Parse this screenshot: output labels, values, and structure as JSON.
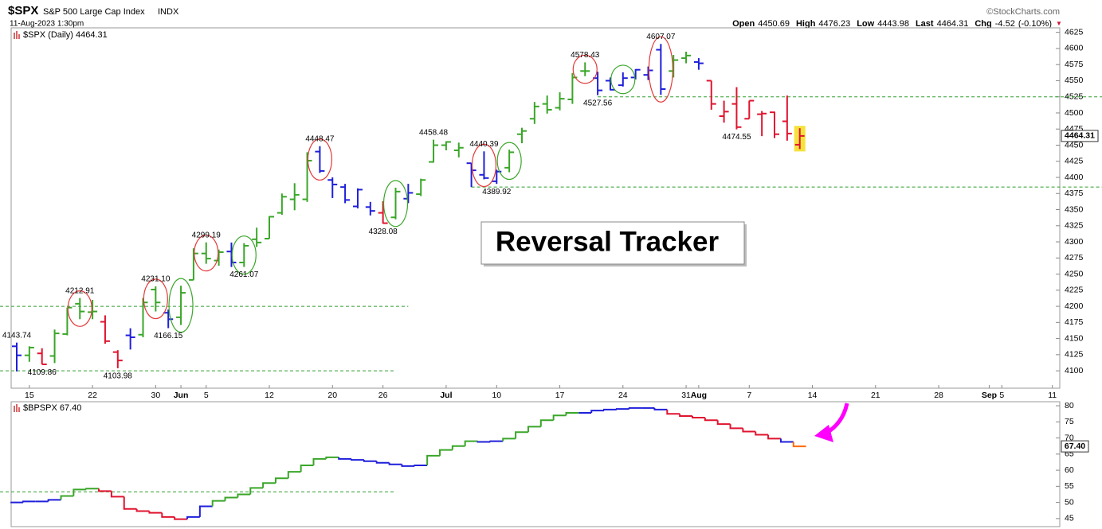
{
  "header": {
    "symbol": "$SPX",
    "name": "S&P 500 Large Cap Index",
    "exchange": "INDX",
    "timestamp": "11-Aug-2023 1:30pm",
    "source": "©StockCharts.com",
    "quote": [
      {
        "label": "Open",
        "value": 4450.69
      },
      {
        "label": "High",
        "value": 4476.23
      },
      {
        "label": "Low",
        "value": 4443.98
      },
      {
        "label": "Last",
        "value": 4464.31
      },
      {
        "label": "Chg",
        "value": -4.52,
        "pct_label": "(-0.10%)"
      }
    ]
  },
  "chart_data": [
    {
      "type": "ohlc",
      "legend": "$SPX (Daily)",
      "last": 4464.31,
      "text_box": "Reversal Tracker",
      "categories": [
        "2023-05-12",
        "2023-05-15",
        "2023-05-16",
        "2023-05-17",
        "2023-05-18",
        "2023-05-19",
        "2023-05-22",
        "2023-05-23",
        "2023-05-24",
        "2023-05-25",
        "2023-05-26",
        "2023-05-30",
        "2023-05-31",
        "2023-06-01",
        "2023-06-02",
        "2023-06-05",
        "2023-06-06",
        "2023-06-07",
        "2023-06-08",
        "2023-06-09",
        "2023-06-12",
        "2023-06-13",
        "2023-06-14",
        "2023-06-15",
        "2023-06-16",
        "2023-06-20",
        "2023-06-21",
        "2023-06-22",
        "2023-06-23",
        "2023-06-26",
        "2023-06-27",
        "2023-06-28",
        "2023-06-29",
        "2023-06-30",
        "2023-07-03",
        "2023-07-05",
        "2023-07-06",
        "2023-07-07",
        "2023-07-10",
        "2023-07-11",
        "2023-07-12",
        "2023-07-13",
        "2023-07-14",
        "2023-07-17",
        "2023-07-18",
        "2023-07-19",
        "2023-07-20",
        "2023-07-21",
        "2023-07-24",
        "2023-07-25",
        "2023-07-26",
        "2023-07-27",
        "2023-07-28",
        "2023-07-31",
        "2023-08-01",
        "2023-08-02",
        "2023-08-03",
        "2023-08-04",
        "2023-08-07",
        "2023-08-08",
        "2023-08-09",
        "2023-08-10",
        "2023-08-11",
        "2023-08-14",
        "2023-08-15",
        "2023-08-16",
        "2023-08-17",
        "2023-08-18",
        "2023-08-21",
        "2023-08-22",
        "2023-08-23",
        "2023-08-24",
        "2023-08-25",
        "2023-08-28",
        "2023-08-29",
        "2023-08-30",
        "2023-08-31",
        "2023-09-01",
        "2023-09-05",
        "2023-09-06",
        "2023-09-07",
        "2023-09-08",
        "2023-09-11"
      ],
      "open": [
        4138,
        4124,
        4127,
        4123,
        4157,
        4204,
        4191,
        4176,
        4129,
        4155,
        4156,
        4226,
        4190,
        4183,
        4241,
        4282,
        4271,
        4285,
        4268,
        4304,
        4305,
        4345,
        4366,
        4366,
        4440,
        4396,
        4385,
        4355,
        4354,
        4345,
        4338,
        4367,
        4374,
        4424,
        4450,
        4442,
        4422,
        4404,
        4394,
        4415,
        4467,
        4491,
        4514,
        4508,
        4521,
        4565,
        4554,
        4550,
        4543,
        4555,
        4559,
        4598,
        4565,
        4585,
        4579,
        4550,
        4495,
        4514,
        4491,
        4498,
        4501,
        4487,
        4450.69,
        null,
        null,
        null,
        null,
        null,
        null,
        null,
        null,
        null,
        null,
        null,
        null,
        null,
        null,
        null,
        null,
        null,
        null,
        null,
        null
      ],
      "high": [
        4143.74,
        4138,
        4135,
        4164,
        4198,
        4212.91,
        4210,
        4186,
        4132,
        4166,
        4213,
        4231.1,
        4195,
        4232,
        4290,
        4299.19,
        4288,
        4299,
        4298,
        4322,
        4340,
        4375,
        4391,
        4439,
        4448.47,
        4400,
        4390,
        4383,
        4362,
        4363,
        4384,
        4390,
        4398,
        4458.48,
        4456,
        4454,
        4422,
        4440.39,
        4412,
        4443,
        4477,
        4517,
        4527,
        4532,
        4562,
        4578.43,
        4564,
        4555,
        4563,
        4568,
        4572,
        4607.07,
        4590,
        4595,
        4585,
        4550,
        4519,
        4540,
        4519,
        4503,
        4502,
        4527,
        4476.23,
        null,
        null,
        null,
        null,
        null,
        null,
        null,
        null,
        null,
        null,
        null,
        null,
        null,
        null,
        null,
        null,
        null,
        null,
        null,
        null
      ],
      "low": [
        4099,
        4114,
        4109.86,
        4112,
        4155,
        4180,
        4180,
        4142,
        4103.98,
        4133,
        4152,
        4192,
        4166.15,
        4171,
        4241,
        4266,
        4263,
        4261,
        4261.07,
        4292,
        4305,
        4342,
        4349,
        4362,
        4407,
        4368,
        4360,
        4352,
        4341,
        4328.08,
        4335,
        4360,
        4371,
        4423,
        4442,
        4431,
        4385,
        4397,
        4389.92,
        4408,
        4453,
        4483,
        4499,
        4504,
        4514,
        4557,
        4527.56,
        4535,
        4541,
        4552,
        4551,
        4528,
        4555,
        4577,
        4567,
        4505,
        4485,
        4474.55,
        4491,
        4464,
        4461,
        4457,
        4443.98,
        null,
        null,
        null,
        null,
        null,
        null,
        null,
        null,
        null,
        null,
        null,
        null,
        null,
        null,
        null,
        null,
        null,
        null,
        null,
        null
      ],
      "close": [
        4124,
        4136,
        4110,
        4158,
        4198,
        4192,
        4192,
        4146,
        4116,
        4152,
        4206,
        4206,
        4180,
        4221,
        4282,
        4274,
        4284,
        4268,
        4294,
        4299,
        4339,
        4370,
        4373,
        4426,
        4410,
        4389,
        4365,
        4381,
        4348,
        4329,
        4378,
        4376,
        4396,
        4450,
        4455,
        4446,
        4411,
        4399,
        4409,
        4439,
        4472,
        4510,
        4505,
        4522,
        4555,
        4565,
        4535,
        4536,
        4554,
        4567,
        4566,
        4537,
        4582,
        4589,
        4577,
        4514,
        4502,
        4478,
        4519,
        4499,
        4467,
        4468,
        4464.31,
        null,
        null,
        null,
        null,
        null,
        null,
        null,
        null,
        null,
        null,
        null,
        null,
        null,
        null,
        null,
        null,
        null,
        null,
        null,
        null
      ],
      "colors": [
        "#1f1fdb",
        "#3aa629",
        "#e0142f",
        "#3aa629",
        "#3aa629",
        "#3aa629",
        "#3aa629",
        "#e0142f",
        "#e0142f",
        "#1f1fdb",
        "#3aa629",
        "#3aa629",
        "#1f1fdb",
        "#3aa629",
        "#3aa629",
        "#3aa629",
        "#3aa629",
        "#1f1fdb",
        "#3aa629",
        "#3aa629",
        "#3aa629",
        "#3aa629",
        "#3aa629",
        "#3aa629",
        "#1f1fdb",
        "#1f1fdb",
        "#1f1fdb",
        "#1f1fdb",
        "#1f1fdb",
        "#e0142f",
        "#3aa629",
        "#1f1fdb",
        "#3aa629",
        "#3aa629",
        "#3aa629",
        "#3aa629",
        "#1f1fdb",
        "#1f1fdb",
        "#1f1fdb",
        "#3aa629",
        "#3aa629",
        "#3aa629",
        "#3aa629",
        "#3aa629",
        "#3aa629",
        "#3aa629",
        "#1f1fdb",
        "#1f1fdb",
        "#1f1fdb",
        "#1f1fdb",
        "#1f1fdb",
        "#1f1fdb",
        "#3aa629",
        "#3aa629",
        "#1f1fdb",
        "#e0142f",
        "#e0142f",
        "#e0142f",
        "#e0142f",
        "#e0142f",
        "#e0142f",
        "#e0142f",
        "#e0142f",
        null,
        null,
        null,
        null,
        null,
        null,
        null,
        null,
        null,
        null,
        null,
        null,
        null,
        null,
        null,
        null,
        null,
        null,
        null,
        null
      ],
      "highlight_last": "#f5e23c",
      "ylim": [
        4073,
        4632
      ],
      "yticks": [
        4100,
        4125,
        4150,
        4175,
        4200,
        4225,
        4250,
        4275,
        4300,
        4325,
        4350,
        4375,
        4400,
        4425,
        4450,
        4475,
        4500,
        4525,
        4550,
        4575,
        4600,
        4625
      ],
      "xticks": [
        {
          "value": "2023-05-15",
          "label": "15"
        },
        {
          "value": "2023-05-22",
          "label": "22"
        },
        {
          "value": "2023-05-30",
          "label": "30"
        },
        {
          "value": "2023-06-01",
          "label": "Jun"
        },
        {
          "value": "2023-06-05",
          "label": "5"
        },
        {
          "value": "2023-06-12",
          "label": "12"
        },
        {
          "value": "2023-06-20",
          "label": "20"
        },
        {
          "value": "2023-06-26",
          "label": "26"
        },
        {
          "value": "2023-07-03",
          "label": "Jul"
        },
        {
          "value": "2023-07-10",
          "label": "10"
        },
        {
          "value": "2023-07-17",
          "label": "17"
        },
        {
          "value": "2023-07-24",
          "label": "24"
        },
        {
          "value": "2023-07-31",
          "label": "31"
        },
        {
          "value": "2023-08-01",
          "label": "Aug"
        },
        {
          "value": "2023-08-07",
          "label": "7"
        },
        {
          "value": "2023-08-14",
          "label": "14"
        },
        {
          "value": "2023-08-21",
          "label": "21"
        },
        {
          "value": "2023-08-28",
          "label": "28"
        },
        {
          "value": "2023-09-01",
          "label": "Sep"
        },
        {
          "value": "2023-09-05",
          "label": "5"
        },
        {
          "value": "2023-09-11",
          "label": "11"
        }
      ],
      "reference_color": "#2e9e2e",
      "reference_lines": [
        {
          "value": 4200,
          "to": "2023-06-28"
        },
        {
          "value": 4100,
          "to": "2023-06-27"
        },
        {
          "value": 4525,
          "from": "2023-07-20"
        },
        {
          "value": 4385,
          "from": "2023-07-06"
        }
      ],
      "annotations": [
        {
          "x": "2023-05-12",
          "y": 4143.74
        },
        {
          "x": "2023-05-16",
          "y": 4109.86
        },
        {
          "x": "2023-05-19",
          "y": 4212.91
        },
        {
          "x": "2023-05-24",
          "y": 4103.98
        },
        {
          "x": "2023-05-30",
          "y": 4231.1,
          "label": "4231.10"
        },
        {
          "x": "2023-05-31",
          "y": 4166.15
        },
        {
          "x": "2023-06-05",
          "y": 4299.19
        },
        {
          "x": "2023-06-08",
          "y": 4261.07
        },
        {
          "x": "2023-06-16",
          "y": 4448.47
        },
        {
          "x": "2023-06-26",
          "y": 4328.08
        },
        {
          "x": "2023-06-30",
          "y": 4458.48
        },
        {
          "x": "2023-07-07",
          "y": 4440.39
        },
        {
          "x": "2023-07-10",
          "y": 4389.92
        },
        {
          "x": "2023-07-19",
          "y": 4578.43
        },
        {
          "x": "2023-07-20",
          "y": 4527.56
        },
        {
          "x": "2023-07-27",
          "y": 4607.07
        },
        {
          "x": "2023-08-04",
          "y": 4474.55
        }
      ],
      "reversal_circles": [
        {
          "x": "2023-05-19",
          "color": "#e23a3a"
        },
        {
          "x": "2023-05-30",
          "color": "#e23a3a"
        },
        {
          "x": "2023-06-01",
          "color": "#3aa629"
        },
        {
          "x": "2023-06-05",
          "color": "#e23a3a"
        },
        {
          "x": "2023-06-08",
          "color": "#3aa629"
        },
        {
          "x": "2023-06-16",
          "color": "#e23a3a"
        },
        {
          "x": "2023-06-27",
          "color": "#3aa629"
        },
        {
          "x": "2023-07-07",
          "color": "#e23a3a"
        },
        {
          "x": "2023-07-11",
          "color": "#3aa629"
        },
        {
          "x": "2023-07-19",
          "color": "#e23a3a"
        },
        {
          "x": "2023-07-24",
          "color": "#3aa629"
        },
        {
          "x": "2023-07-27",
          "color": "#e23a3a"
        }
      ]
    },
    {
      "type": "step",
      "legend": "$BPSPX",
      "last": {
        "value": 67.4,
        "label": "67.40"
      },
      "values": [
        50,
        50.3,
        50.3,
        50.8,
        52,
        54,
        54.3,
        53.5,
        51.8,
        48,
        47.3,
        46.8,
        45.5,
        44.8,
        45.5,
        48.8,
        50.5,
        51.5,
        52.5,
        54.5,
        56,
        57.5,
        59.5,
        61.5,
        63.5,
        64,
        63.5,
        63.2,
        62.8,
        62.3,
        61.8,
        61.3,
        61.5,
        64.5,
        66.3,
        67.5,
        69,
        68.8,
        69,
        69.8,
        71.8,
        73.5,
        75.5,
        77,
        77.8,
        77.8,
        78.5,
        78.8,
        79,
        79.3,
        79.3,
        78.8,
        77.5,
        76.8,
        76.3,
        75.5,
        74.3,
        73,
        72,
        71,
        69.8,
        68.8,
        67.4,
        null,
        null,
        null,
        null,
        null,
        null,
        null,
        null,
        null,
        null,
        null,
        null,
        null,
        null,
        null,
        null,
        null,
        null,
        null,
        null
      ],
      "colors": [
        "#1f1fdb",
        "#1f1fdb",
        "#1f1fdb",
        "#1f1fdb",
        "#3aa629",
        "#3aa629",
        "#3aa629",
        "#e0142f",
        "#e0142f",
        "#e0142f",
        "#e0142f",
        "#e0142f",
        "#e0142f",
        "#e0142f",
        "#1f1fdb",
        "#1f1fdb",
        "#3aa629",
        "#3aa629",
        "#3aa629",
        "#3aa629",
        "#3aa629",
        "#3aa629",
        "#3aa629",
        "#3aa629",
        "#3aa629",
        "#3aa629",
        "#1f1fdb",
        "#1f1fdb",
        "#1f1fdb",
        "#1f1fdb",
        "#1f1fdb",
        "#1f1fdb",
        "#1f1fdb",
        "#3aa629",
        "#3aa629",
        "#3aa629",
        "#3aa629",
        "#1f1fdb",
        "#1f1fdb",
        "#3aa629",
        "#3aa629",
        "#3aa629",
        "#3aa629",
        "#3aa629",
        "#3aa629",
        "#1f1fdb",
        "#1f1fdb",
        "#1f1fdb",
        "#1f1fdb",
        "#1f1fdb",
        "#1f1fdb",
        "#1f1fdb",
        "#e0142f",
        "#e0142f",
        "#e0142f",
        "#e0142f",
        "#e0142f",
        "#e0142f",
        "#e0142f",
        "#e0142f",
        "#e0142f",
        "#1f1fdb",
        "#ff6a00",
        null,
        null,
        null,
        null,
        null,
        null,
        null,
        null,
        null,
        null,
        null,
        null,
        null,
        null,
        null,
        null,
        null,
        null,
        null,
        null
      ],
      "ylim": [
        42.5,
        81.25
      ],
      "yticks": [
        45,
        50,
        55,
        60,
        65,
        70,
        75,
        80
      ],
      "reference_color": "#2e9e2e",
      "reference_lines": [
        {
          "value": 53.3,
          "to": "2023-06-27"
        }
      ]
    }
  ]
}
